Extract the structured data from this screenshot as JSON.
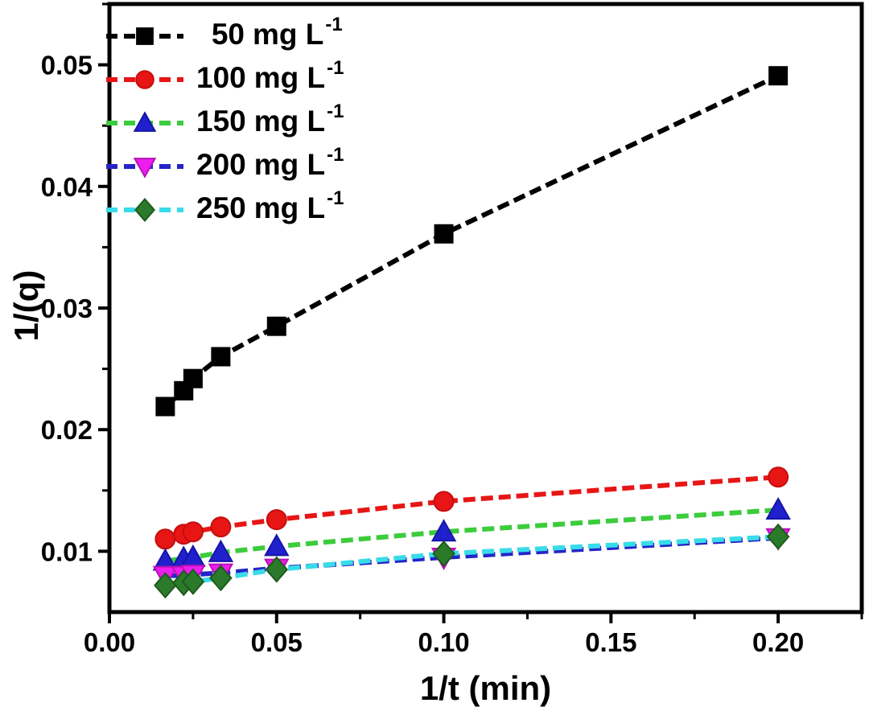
{
  "figure": {
    "background": "#ffffff",
    "frame_color": "#000000"
  },
  "chart_data": {
    "type": "line",
    "title": "",
    "xlabel": "1/t (min)",
    "ylabel": "1/(q)",
    "xlim": [
      0,
      0.225
    ],
    "ylim": [
      0.005,
      0.055
    ],
    "grid": false,
    "legend_position": "top-left",
    "x_major_ticks": [
      0.0,
      0.05,
      0.1,
      0.15,
      0.2
    ],
    "x_tick_labels": [
      "0.00",
      "0.05",
      "0.10",
      "0.15",
      "0.20"
    ],
    "x_minor_ticks": [
      0.025,
      0.075,
      0.125,
      0.175,
      0.225
    ],
    "y_major_ticks": [
      0.01,
      0.02,
      0.03,
      0.04,
      0.05
    ],
    "y_tick_labels": [
      "0.01",
      "0.02",
      "0.03",
      "0.04",
      "0.05"
    ],
    "y_minor_ticks": [
      0.015,
      0.025,
      0.035,
      0.045,
      0.055
    ],
    "x": [
      0.0167,
      0.0222,
      0.025,
      0.0333,
      0.05,
      0.1,
      0.2
    ],
    "series": [
      {
        "name": "50 mg L-1",
        "legend_value": "50",
        "legend_unit": "mg L",
        "legend_sup": "-1",
        "line_color": "#000000",
        "marker": "square",
        "marker_color": "#000000",
        "marker_edge": "#000000",
        "values": [
          0.0219,
          0.0232,
          0.0242,
          0.026,
          0.0285,
          0.0361,
          0.0491
        ]
      },
      {
        "name": "100 mg L-1",
        "legend_value": "100",
        "legend_unit": "mg L",
        "legend_sup": "-1",
        "line_color": "#e81515",
        "marker": "circle",
        "marker_color": "#e81515",
        "marker_edge": "#c40f0f",
        "values": [
          0.011,
          0.0114,
          0.0116,
          0.012,
          0.0126,
          0.0141,
          0.0161
        ]
      },
      {
        "name": "150 mg L-1",
        "legend_value": "150",
        "legend_unit": "mg L",
        "legend_sup": "-1",
        "line_color": "#3ccc3c",
        "marker": "triangle-up",
        "marker_color": "#2020cc",
        "marker_edge": "#1515a8",
        "values": [
          0.0092,
          0.0094,
          0.0095,
          0.0099,
          0.0104,
          0.0116,
          0.0134
        ]
      },
      {
        "name": "200 mg L-1",
        "legend_value": "200",
        "legend_unit": "mg L",
        "legend_sup": "-1",
        "line_color": "#2424c8",
        "marker": "triangle-down",
        "marker_color": "#ee1cee",
        "marker_edge": "#b512b5",
        "values": [
          0.008,
          0.008,
          0.0081,
          0.0082,
          0.0086,
          0.0095,
          0.0111
        ]
      },
      {
        "name": "250 mg L-1",
        "legend_value": "250",
        "legend_unit": "mg L",
        "legend_sup": "-1",
        "line_color": "#38dce8",
        "marker": "diamond",
        "marker_color": "#2b7a2b",
        "marker_edge": "#1d5a1d",
        "values": [
          0.0072,
          0.0074,
          0.0075,
          0.0078,
          0.0085,
          0.0098,
          0.0112
        ]
      }
    ]
  }
}
